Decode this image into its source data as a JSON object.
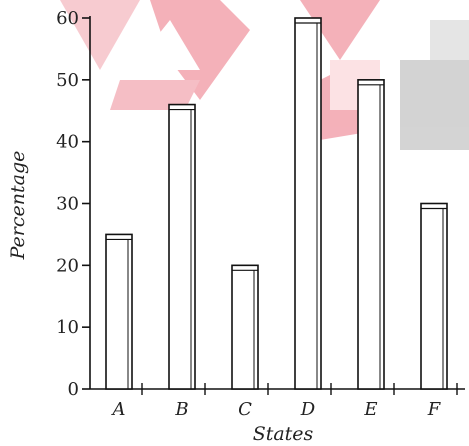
{
  "chart_data": {
    "type": "bar",
    "title": "",
    "xlabel": "States",
    "ylabel": "Percentage",
    "categories": [
      "A",
      "B",
      "C",
      "D",
      "E",
      "F"
    ],
    "values": [
      25,
      46,
      20,
      60,
      50,
      30
    ],
    "ylim": [
      0,
      60
    ],
    "yticks": [
      0,
      10,
      20,
      30,
      40,
      50,
      60
    ],
    "grid": false,
    "bar_color": "#ffffff",
    "bar_outline_color": "#111111"
  }
}
